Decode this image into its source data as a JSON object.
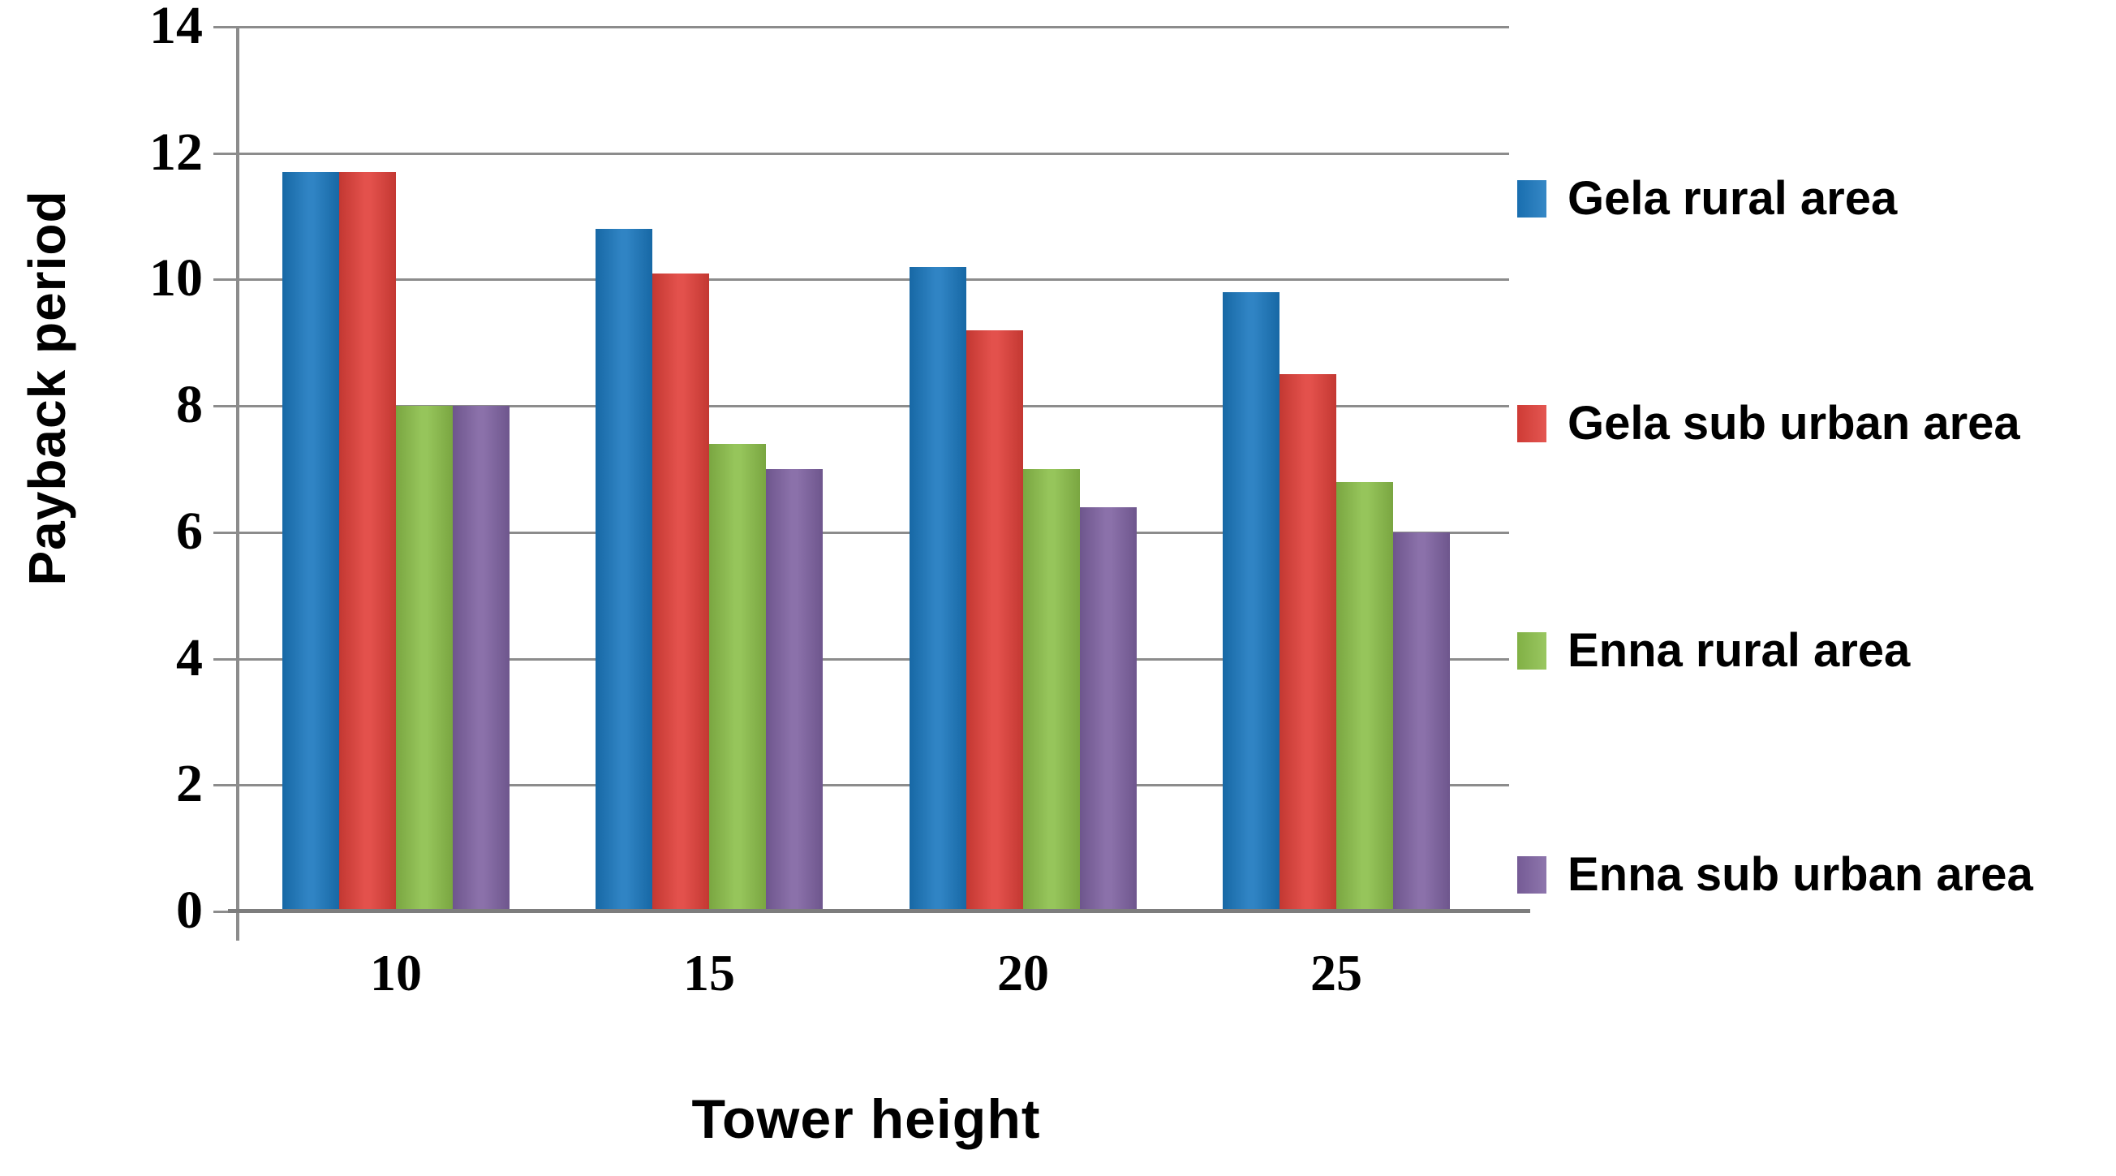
{
  "chart_data": {
    "type": "bar",
    "title": "",
    "xlabel": "Tower height",
    "ylabel": "Payback period",
    "categories": [
      "10",
      "15",
      "20",
      "25"
    ],
    "series": [
      {
        "name": "Gela rural area",
        "color": "#1b78be",
        "values": [
          11.7,
          10.8,
          10.2,
          9.8
        ]
      },
      {
        "name": "Gela sub urban area",
        "color": "#e0403a",
        "values": [
          11.7,
          10.1,
          9.2,
          8.5
        ]
      },
      {
        "name": "Enna rural area",
        "color": "#8cbf4b",
        "values": [
          8.0,
          7.4,
          7.0,
          6.8
        ]
      },
      {
        "name": "Enna sub urban area",
        "color": "#7f63a2",
        "values": [
          8.0,
          7.0,
          6.4,
          6.0
        ]
      }
    ],
    "ylim": [
      0,
      14
    ],
    "yticks": [
      0,
      2,
      4,
      6,
      8,
      10,
      12,
      14
    ],
    "grid": true,
    "legend_position": "right",
    "gridline_color": "#8c8c8c",
    "axis_color": "#7d7d7d",
    "text_color": "#000000"
  }
}
